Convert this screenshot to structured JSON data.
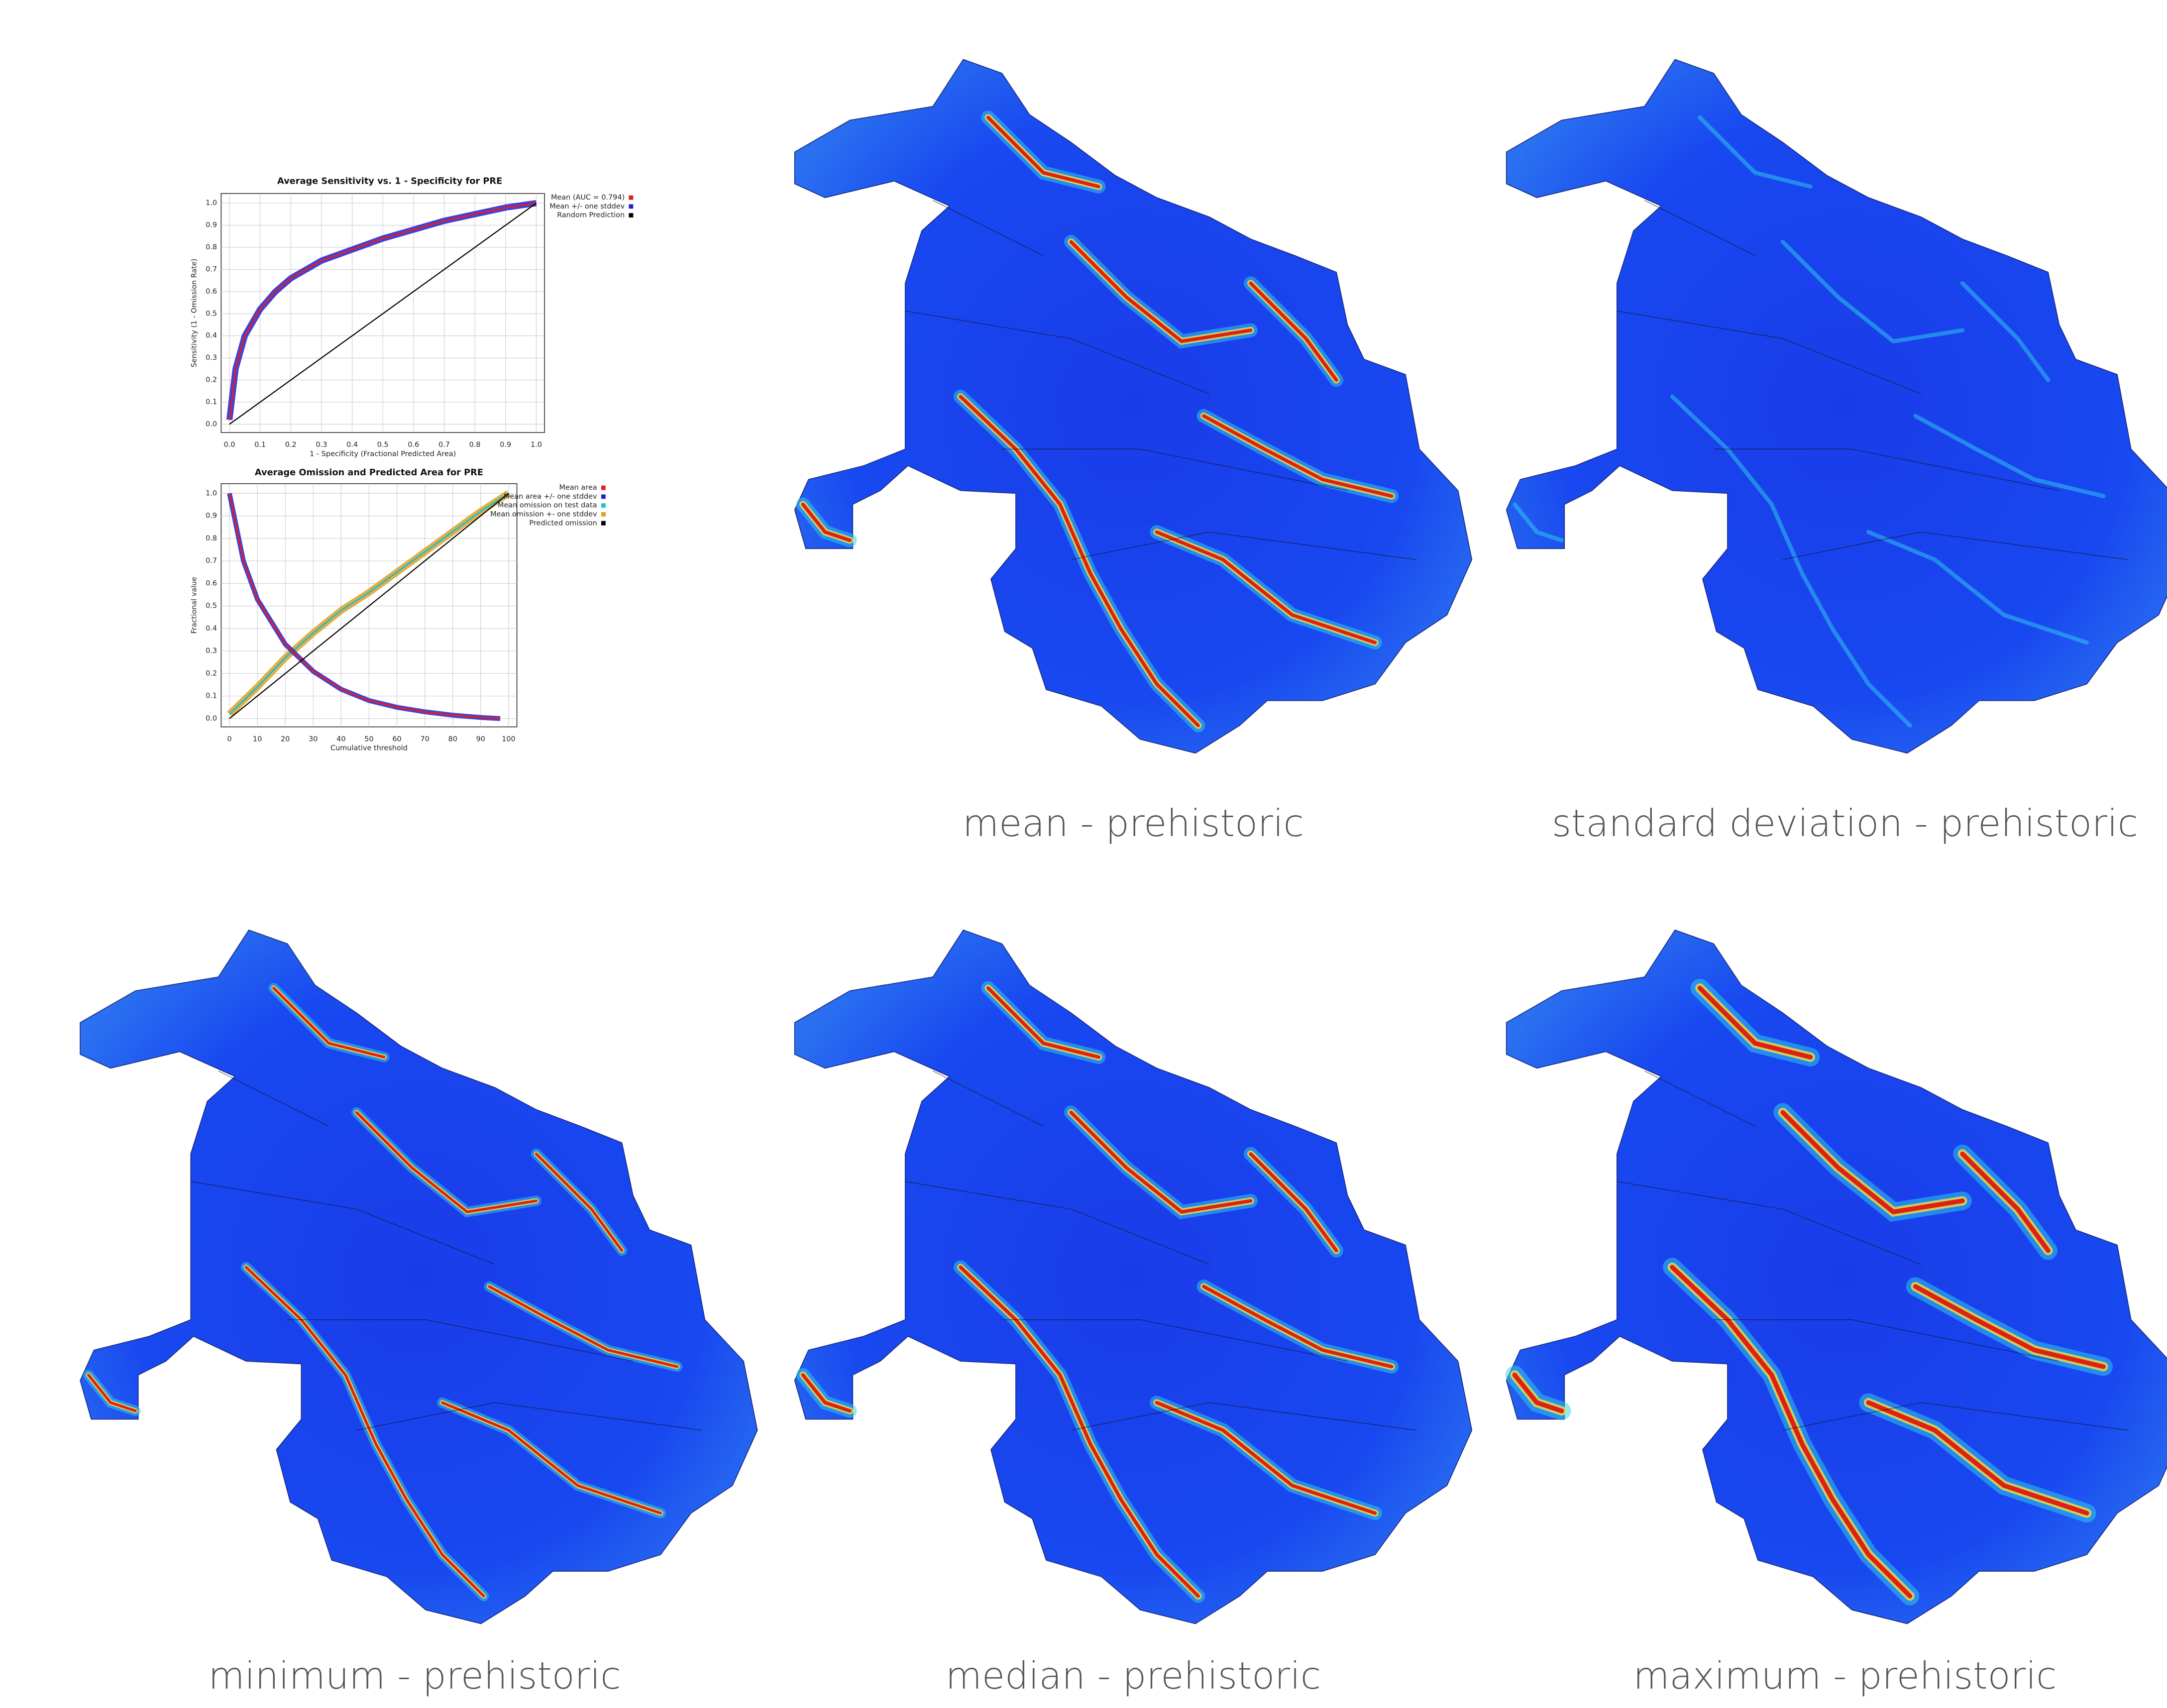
{
  "chart_data": [
    {
      "type": "line",
      "title": "Average Sensitivity vs. 1 - Specificity for PRE",
      "x_label": "1 - Specificity (Fractional Predicted Area)",
      "y_label": "Sensitivity (1 - Omission Rate)",
      "xlim": [
        0,
        1
      ],
      "ylim": [
        0,
        1
      ],
      "xticks": [
        {
          "value": 0,
          "label": "0.0"
        },
        0.1,
        0.2,
        0.3,
        0.4,
        0.5,
        0.6,
        0.7,
        0.8,
        0.9,
        {
          "value": 1,
          "label": "1.0"
        }
      ],
      "yticks": [
        {
          "value": 0,
          "label": "0.0"
        },
        0.1,
        0.2,
        0.3,
        0.4,
        0.5,
        0.6,
        0.7,
        0.8,
        0.9,
        {
          "value": 1,
          "label": "1.0"
        }
      ],
      "grid": true,
      "series": [
        {
          "name": "Mean (AUC = 0.794)",
          "color": "#e02020",
          "x": [
            0,
            0.02,
            0.05,
            0.1,
            0.15,
            0.2,
            0.3,
            0.4,
            0.5,
            0.6,
            0.7,
            0.8,
            0.9,
            1
          ],
          "values": [
            0.02,
            0.25,
            0.4,
            0.52,
            0.6,
            0.66,
            0.74,
            0.79,
            0.84,
            0.88,
            0.92,
            0.95,
            0.98,
            1
          ]
        },
        {
          "name": "Mean +/- one stddev",
          "color": "#2020d0",
          "x": [
            0,
            0.02,
            0.05,
            0.1,
            0.15,
            0.2,
            0.3,
            0.4,
            0.5,
            0.6,
            0.7,
            0.8,
            0.9,
            1
          ],
          "values": [
            0.02,
            0.25,
            0.4,
            0.52,
            0.6,
            0.66,
            0.74,
            0.79,
            0.84,
            0.88,
            0.92,
            0.95,
            0.98,
            1
          ]
        },
        {
          "name": "Random Prediction",
          "color": "#000000",
          "x": [
            0,
            1
          ],
          "values": [
            0,
            1
          ]
        }
      ]
    },
    {
      "type": "line",
      "title": "Average Omission and Predicted Area for PRE",
      "x_label": "Cumulative threshold",
      "y_label": "Fractional value",
      "xlim": [
        0,
        100
      ],
      "ylim": [
        0,
        1
      ],
      "xticks": [
        0,
        10,
        20,
        30,
        40,
        50,
        60,
        70,
        80,
        90,
        100
      ],
      "yticks": [
        {
          "value": 0,
          "label": "0.0"
        },
        0.1,
        0.2,
        0.3,
        0.4,
        0.5,
        0.6,
        0.7,
        0.8,
        0.9,
        {
          "value": 1,
          "label": "1.0"
        }
      ],
      "grid": true,
      "series": [
        {
          "name": "Mean area",
          "color": "#e02020",
          "x": [
            0,
            5,
            10,
            20,
            30,
            40,
            50,
            60,
            70,
            80,
            90,
            97
          ],
          "values": [
            1,
            0.7,
            0.53,
            0.33,
            0.21,
            0.13,
            0.08,
            0.05,
            0.03,
            0.015,
            0.005,
            0
          ]
        },
        {
          "name": "Mean area +/- one stddev",
          "color": "#2020d0",
          "x": [
            0,
            5,
            10,
            20,
            30,
            40,
            50,
            60,
            70,
            80,
            90,
            97
          ],
          "values": [
            1,
            0.7,
            0.53,
            0.33,
            0.21,
            0.13,
            0.08,
            0.05,
            0.03,
            0.015,
            0.005,
            0
          ]
        },
        {
          "name": "Mean omission on test data",
          "color": "#20c0d0",
          "x": [
            0,
            5,
            10,
            20,
            30,
            40,
            50,
            60,
            70,
            80,
            90,
            100
          ],
          "values": [
            0.02,
            0.08,
            0.14,
            0.27,
            0.38,
            0.48,
            0.56,
            0.65,
            0.74,
            0.83,
            0.92,
            1
          ]
        },
        {
          "name": "Mean omission +- one stddev",
          "color": "#e0a020",
          "x": [
            0,
            5,
            10,
            20,
            30,
            40,
            50,
            60,
            70,
            80,
            90,
            100
          ],
          "values": [
            0.02,
            0.08,
            0.14,
            0.27,
            0.38,
            0.48,
            0.56,
            0.65,
            0.74,
            0.83,
            0.92,
            1
          ]
        },
        {
          "name": "Predicted omission",
          "color": "#000000",
          "x": [
            0,
            100
          ],
          "values": [
            0,
            1
          ]
        }
      ]
    }
  ],
  "maps": [
    {
      "caption": "mean - prehistoric"
    },
    {
      "caption": "standard deviation - prehistoric"
    },
    {
      "caption": "minimum - prehistoric"
    },
    {
      "caption": "median - prehistoric"
    },
    {
      "caption": "maximum - prehistoric"
    }
  ]
}
